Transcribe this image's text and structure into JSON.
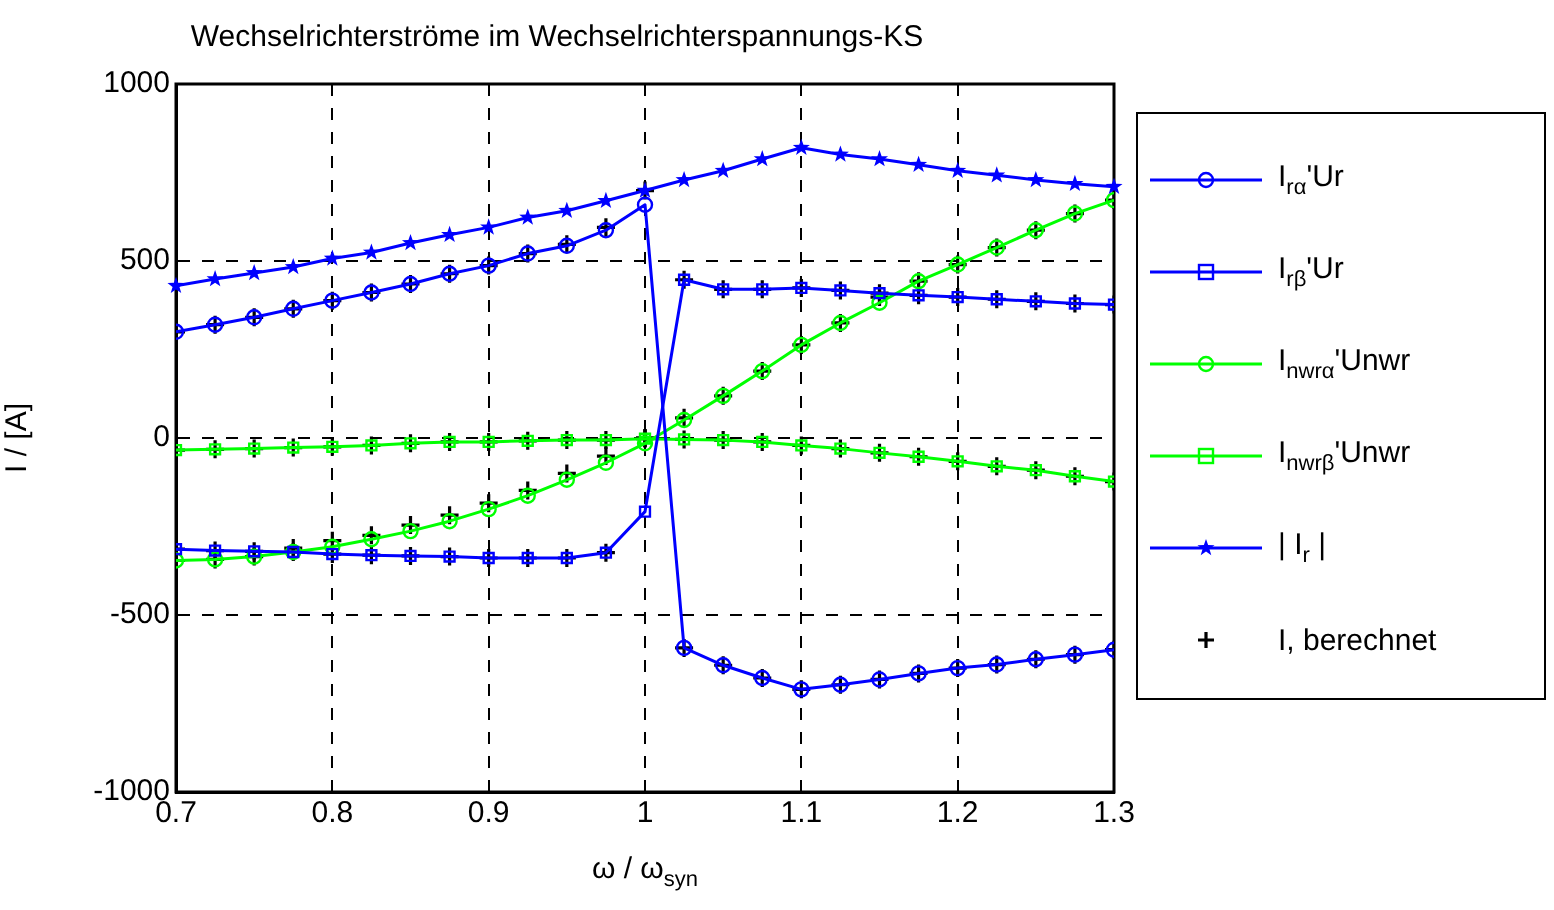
{
  "chart_data": {
    "type": "line",
    "title": "Wechselrichterströme im Wechselrichterspannungs-KS",
    "xlabel": "ω / ω$_{syn}$",
    "ylabel": "I / [A]",
    "x": [
      0.7,
      0.725,
      0.75,
      0.775,
      0.8,
      0.825,
      0.85,
      0.875,
      0.9,
      0.925,
      0.95,
      0.975,
      1.0,
      1.025,
      1.05,
      1.075,
      1.1,
      1.125,
      1.15,
      1.175,
      1.2,
      1.225,
      1.25,
      1.275,
      1.3
    ],
    "xlim": [
      0.7,
      1.3
    ],
    "xticks": [
      {
        "value": 0.7,
        "label": "0.7"
      },
      {
        "value": 0.8,
        "label": "0.8"
      },
      {
        "value": 0.9,
        "label": "0.9"
      },
      {
        "value": 1,
        "label": "1"
      },
      {
        "value": 1.1,
        "label": "1.1"
      },
      {
        "value": 1.2,
        "label": "1.2"
      },
      {
        "value": 1.3,
        "label": "1.3"
      }
    ],
    "ylim": [
      -1000,
      1000
    ],
    "yticks": [
      -1000,
      -500,
      0,
      500,
      1000
    ],
    "grid": true,
    "legend": "right",
    "line_style": "solid",
    "series": [
      {
        "name": "I$_{rα}$'Ur",
        "color": "#0000ff",
        "marker": "circle",
        "values": [
          300,
          320,
          341,
          365,
          388,
          411,
          435,
          464,
          487,
          521,
          543,
          587,
          659,
          -593,
          -642,
          -678,
          -710,
          -697,
          -682,
          -665,
          -650,
          -640,
          -625,
          -612,
          -598
        ]
      },
      {
        "name": "I$_{rβ}$'Ur",
        "color": "#0000ff",
        "marker": "square",
        "values": [
          -314,
          -318,
          -320,
          -322,
          -328,
          -331,
          -333,
          -335,
          -339,
          -339,
          -339,
          -324,
          -208,
          447,
          420,
          420,
          424,
          417,
          409,
          403,
          398,
          392,
          386,
          380,
          377
        ]
      },
      {
        "name": "I$_{nwrα}$'Unwr",
        "color": "#00ff00",
        "marker": "circle",
        "values": [
          -346,
          -343,
          -335,
          -322,
          -307,
          -286,
          -263,
          -235,
          -201,
          -163,
          -118,
          -70,
          -15,
          51,
          119,
          189,
          263,
          325,
          382,
          443,
          490,
          538,
          587,
          634,
          672
        ]
      },
      {
        "name": "I$_{nwrβ}$'Unwr",
        "color": "#00ff00",
        "marker": "square",
        "values": [
          -34,
          -32,
          -30,
          -27,
          -25,
          -21,
          -15,
          -11,
          -11,
          -8,
          -6,
          -6,
          -2,
          -4,
          -6,
          -11,
          -21,
          -30,
          -42,
          -53,
          -66,
          -80,
          -91,
          -108,
          -123
        ]
      },
      {
        "name": "| I$_{r}$ |",
        "color": "#0000ff",
        "marker": "star",
        "values": [
          430,
          449,
          466,
          483,
          507,
          524,
          551,
          574,
          595,
          623,
          642,
          670,
          699,
          729,
          755,
          788,
          820,
          801,
          788,
          772,
          755,
          742,
          729,
          718,
          710
        ]
      },
      {
        "name": "I, berechnet",
        "type": "scatter",
        "color": "#000000",
        "marker": "cross",
        "x": [
          0.7,
          0.725,
          0.75,
          0.775,
          0.8,
          0.825,
          0.85,
          0.875,
          0.9,
          0.925,
          0.95,
          0.975,
          1.0,
          1.025,
          1.05,
          1.075,
          1.1,
          1.125,
          1.15,
          1.175,
          1.2,
          1.225,
          1.25,
          1.275,
          1.3,
          0.7,
          0.725,
          0.75,
          0.775,
          0.8,
          0.825,
          0.85,
          0.875,
          0.9,
          0.925,
          0.95,
          0.975,
          1.0,
          1.025,
          1.05,
          1.075,
          1.1,
          1.125,
          1.15,
          1.175,
          1.2,
          1.225,
          1.25,
          1.275,
          1.3,
          0.7,
          0.725,
          0.75,
          0.775,
          0.8,
          0.825,
          0.85,
          0.875,
          0.9,
          0.925,
          0.95,
          0.975,
          1.0,
          1.025,
          1.05,
          1.075,
          1.1,
          1.125,
          1.15,
          1.175,
          1.2,
          1.225,
          1.25,
          1.275,
          1.3,
          0.7,
          0.725,
          0.75,
          0.775,
          0.8,
          0.825,
          0.85,
          0.875,
          0.9,
          0.925,
          0.95,
          0.975,
          1.0,
          1.025,
          1.05,
          1.075,
          1.1,
          1.125,
          1.15,
          1.175,
          1.2,
          1.225,
          1.25,
          1.275,
          1.3
        ],
        "values": [
          300,
          320,
          341,
          365,
          388,
          411,
          435,
          464,
          487,
          521,
          547,
          595,
          699,
          -593,
          -642,
          -678,
          -710,
          -697,
          -682,
          -665,
          -650,
          -640,
          -625,
          -612,
          -598,
          -314,
          -318,
          -320,
          -322,
          -328,
          -331,
          -333,
          -335,
          -339,
          -339,
          -339,
          -324,
          0,
          447,
          420,
          420,
          424,
          417,
          409,
          403,
          398,
          392,
          386,
          380,
          377,
          -346,
          -343,
          -335,
          -311,
          -290,
          -275,
          -246,
          -218,
          -184,
          -148,
          -100,
          -51,
          0,
          57,
          119,
          189,
          263,
          325,
          398,
          443,
          490,
          538,
          587,
          634,
          672,
          -34,
          -32,
          -30,
          -27,
          -25,
          -21,
          -15,
          -11,
          -11,
          -8,
          -6,
          -6,
          -2,
          -4,
          -6,
          -11,
          -21,
          -30,
          -42,
          -53,
          -66,
          -80,
          -91,
          -108,
          -123
        ]
      }
    ]
  }
}
